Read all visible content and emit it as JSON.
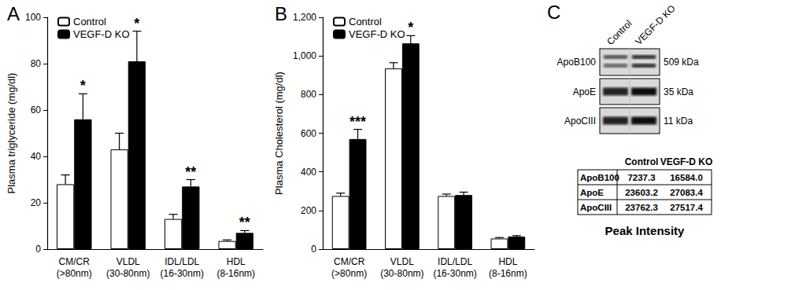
{
  "chart_data": [
    {
      "type": "bar",
      "title": "A",
      "categories": [
        "CM/CR\n(>80nm)",
        "VLDL\n(30-80nm)",
        "IDL/LDL\n(16-30nm)",
        "HDL\n(8-16nm)"
      ],
      "ylabel": "Plasma triglyceride (mg/dl)",
      "series": [
        {
          "name": "Control",
          "color": "#ffffff",
          "values": [
            28,
            43,
            13,
            3.5
          ],
          "errors": [
            4,
            7,
            2,
            0.5
          ]
        },
        {
          "name": "VEGF-D KO",
          "color": "#000000",
          "values": [
            56,
            81,
            27,
            7
          ],
          "errors": [
            11,
            13,
            3,
            1
          ],
          "annotations": [
            "*",
            "*",
            "**",
            "**"
          ]
        }
      ],
      "ylim": [
        0,
        100
      ],
      "yticks": [
        0,
        20,
        40,
        60,
        80,
        100
      ],
      "grid": false,
      "legend": "upper left"
    },
    {
      "type": "bar",
      "title": "B",
      "categories": [
        "CM/CR\n(>80nm)",
        "VLDL\n(30-80nm)",
        "IDL/LDL\n(16-30nm)",
        "HDL\n(8-16nm)"
      ],
      "ylabel": "Plasma Cholesterol (mg/dl)",
      "series": [
        {
          "name": "Control",
          "color": "#ffffff",
          "values": [
            275,
            935,
            275,
            55
          ],
          "errors": [
            15,
            30,
            10,
            5
          ]
        },
        {
          "name": "VEGF-D KO",
          "color": "#000000",
          "values": [
            570,
            1065,
            280,
            65
          ],
          "errors": [
            50,
            40,
            15,
            5
          ],
          "annotations": [
            "***",
            "*",
            null,
            null
          ]
        }
      ],
      "ylim": [
        0,
        1200
      ],
      "yticks": [
        0,
        200,
        400,
        600,
        800,
        1000,
        1200
      ],
      "grid": false,
      "legend": "upper left"
    }
  ],
  "panel_c": {
    "title": "C",
    "lanes": [
      "Control",
      "VEGF-D KO"
    ],
    "blots": [
      {
        "label": "ApoB100",
        "size": "509 kDa"
      },
      {
        "label": "ApoE",
        "size": "35 kDa"
      },
      {
        "label": "ApoCIII",
        "size": "11 kDa"
      }
    ],
    "table": {
      "header": [
        "Control",
        "VEGF-D KO"
      ],
      "rows": [
        [
          "ApoB100",
          "7237.3",
          "16584.0"
        ],
        [
          "ApoE",
          "23603.2",
          "27083.4"
        ],
        [
          "ApoCIII",
          "23762.3",
          "27517.4"
        ]
      ]
    },
    "caption": "Peak Intensity"
  }
}
